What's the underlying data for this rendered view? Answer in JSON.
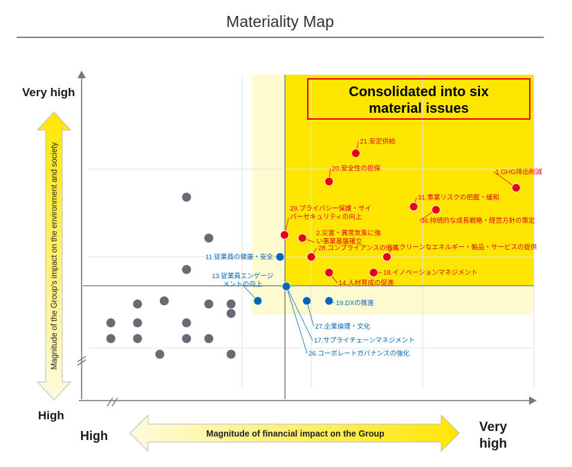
{
  "page": {
    "title": "Materiality Map",
    "callout_lines": [
      "Consolidated into six",
      "material issues"
    ]
  },
  "axes": {
    "y_top": "Very high",
    "y_bottom": "High",
    "y_label": "Magnitude of the Group's impact on the environment and society",
    "x_left": "High",
    "x_right_lines": [
      "Very",
      "high"
    ],
    "x_label": "Magnitude of financial impact on the Group"
  },
  "colors": {
    "highlight_zone": "#ffe600",
    "pale_zone": "#fffbd0",
    "red_issue": "#e60012",
    "blue_issue": "#0068b7",
    "gray_issue": "#6d6875",
    "callout_border": "#e60012",
    "arrow_fill": "#fff3a0"
  },
  "chart_data": {
    "type": "scatter",
    "title": "Materiality Map",
    "xlabel": "Magnitude of financial impact on the Group",
    "ylabel": "Magnitude of the Group's impact on the environment and society",
    "xlim": [
      0,
      100
    ],
    "ylim": [
      0,
      100
    ],
    "grid": true,
    "series": [
      {
        "category": "material",
        "color": "#e60012",
        "points": [
          {
            "label": "1.GHG排出削減",
            "x": 96,
            "y": 64
          },
          {
            "label": "21.安定供給",
            "x": 60,
            "y": 75
          },
          {
            "label": "20.安全性の担保",
            "x": 54,
            "y": 66
          },
          {
            "label": "31.事業リスクの把握・緩和",
            "x": 73,
            "y": 58
          },
          {
            "label": "36.持続的な成長戦略・経営方針の策定",
            "x": 78,
            "y": 57
          },
          {
            "label": "29.プライバシー保護・サイバーセキュリティの向上",
            "x": 44,
            "y": 49
          },
          {
            "label": "2.災害・異常気象に強い事業基盤確立",
            "x": 48,
            "y": 48
          },
          {
            "label": "28.コンプライアンスの徹底",
            "x": 50,
            "y": 42
          },
          {
            "label": "3.クリーンなエネルギー・製品・サービスの提供",
            "x": 67,
            "y": 42
          },
          {
            "label": "18.イノベーションマネジメント",
            "x": 64,
            "y": 37
          },
          {
            "label": "14.人材育成の促進",
            "x": 54,
            "y": 37
          }
        ]
      },
      {
        "category": "other-labeled",
        "color": "#0068b7",
        "points": [
          {
            "label": "11.従業員の健康・安全",
            "x": 43,
            "y": 42
          },
          {
            "label": "13.従業員エンゲージメントの向上",
            "x": 38,
            "y": 28
          },
          {
            "label": "19.DXの推進",
            "x": 54,
            "y": 28
          },
          {
            "label": "27.企業倫理・文化",
            "x": 49,
            "y": 28
          },
          {
            "label": "17.サプライチェーンマネジメント",
            "x": 44,
            "y": 32
          },
          {
            "label": "26.コーポレートガバナンスの強化",
            "x": 44,
            "y": 32
          }
        ]
      },
      {
        "category": "other",
        "color": "#6d6875",
        "points": [
          {
            "x": 22,
            "y": 61
          },
          {
            "x": 27,
            "y": 48
          },
          {
            "x": 22,
            "y": 38
          },
          {
            "x": 17,
            "y": 28
          },
          {
            "x": 27,
            "y": 27
          },
          {
            "x": 32,
            "y": 27
          },
          {
            "x": 11,
            "y": 27
          },
          {
            "x": 11,
            "y": 21
          },
          {
            "x": 5,
            "y": 21
          },
          {
            "x": 22,
            "y": 21
          },
          {
            "x": 32,
            "y": 24
          },
          {
            "x": 5,
            "y": 16
          },
          {
            "x": 11,
            "y": 16
          },
          {
            "x": 22,
            "y": 16
          },
          {
            "x": 27,
            "y": 16
          },
          {
            "x": 16,
            "y": 11
          },
          {
            "x": 32,
            "y": 11
          }
        ]
      }
    ]
  }
}
